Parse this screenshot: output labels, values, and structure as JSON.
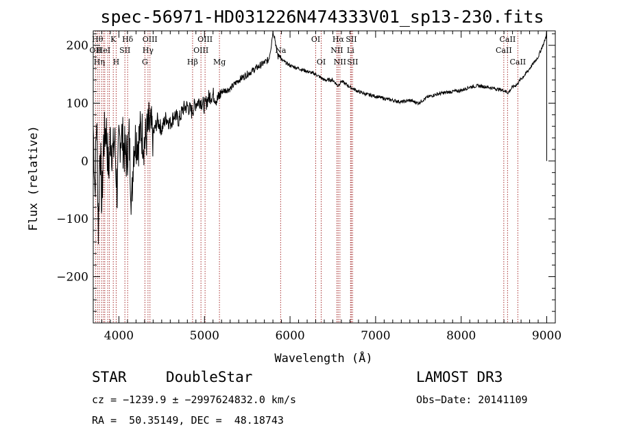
{
  "chart_data": {
    "type": "line",
    "title": "spec-56971-HD031226N474333V01_sp13-230.fits",
    "xlabel": "Wavelength (Å)",
    "ylabel": "Flux (relative)",
    "xlim": [
      3700,
      9100
    ],
    "ylim": [
      -280,
      225
    ],
    "x_ticks": [
      4000,
      5000,
      6000,
      7000,
      8000,
      9000
    ],
    "y_ticks": [
      -200,
      -100,
      0,
      100,
      200
    ],
    "grid": false,
    "series": [
      {
        "name": "spectrum",
        "x": [
          3700,
          3720,
          3740,
          3760,
          3780,
          3800,
          3820,
          3850,
          3880,
          3900,
          3930,
          3950,
          3980,
          4000,
          4030,
          4060,
          4090,
          4120,
          4150,
          4170,
          4200,
          4230,
          4260,
          4300,
          4350,
          4400,
          4450,
          4500,
          4550,
          4600,
          4650,
          4700,
          4750,
          4800,
          4850,
          4900,
          4950,
          5000,
          5050,
          5100,
          5150,
          5200,
          5300,
          5400,
          5500,
          5600,
          5650,
          5700,
          5750,
          5780,
          5800,
          5820,
          5840,
          5860,
          5880,
          5900,
          5950,
          6000,
          6100,
          6200,
          6300,
          6400,
          6500,
          6560,
          6600,
          6700,
          6800,
          6900,
          7000,
          7100,
          7200,
          7300,
          7400,
          7500,
          7600,
          7700,
          7800,
          7900,
          8000,
          8100,
          8200,
          8300,
          8400,
          8500,
          8550,
          8600,
          8650,
          8700,
          8750,
          8800,
          8850,
          8900,
          8940,
          8970,
          8990,
          9000
        ],
        "values": [
          60,
          -50,
          80,
          -120,
          40,
          -80,
          30,
          60,
          -20,
          45,
          10,
          40,
          -60,
          30,
          50,
          20,
          5,
          40,
          -80,
          25,
          40,
          35,
          55,
          30,
          60,
          45,
          70,
          55,
          75,
          65,
          80,
          70,
          90,
          95,
          85,
          100,
          105,
          95,
          110,
          115,
          105,
          120,
          125,
          140,
          150,
          160,
          165,
          170,
          175,
          200,
          225,
          215,
          195,
          180,
          185,
          175,
          170,
          165,
          160,
          155,
          150,
          140,
          140,
          130,
          138,
          128,
          120,
          115,
          112,
          108,
          105,
          102,
          105,
          100,
          110,
          115,
          118,
          120,
          122,
          128,
          130,
          128,
          125,
          122,
          118,
          128,
          132,
          142,
          150,
          160,
          170,
          180,
          195,
          205,
          215,
          225
        ]
      }
    ],
    "spectral_lines": [
      {
        "wavelength": 3727,
        "label": "OII",
        "row": 2
      },
      {
        "wavelength": 3750,
        "label": "Hθ",
        "row": 1
      },
      {
        "wavelength": 3771,
        "label": "Hη",
        "row": 3
      },
      {
        "wavelength": 3798,
        "label": "",
        "row": 0
      },
      {
        "wavelength": 3820,
        "label": "HeI",
        "row": 2
      },
      {
        "wavelength": 3835,
        "label": "",
        "row": 0
      },
      {
        "wavelength": 3869,
        "label": "",
        "row": 0
      },
      {
        "wavelength": 3889,
        "label": "",
        "row": 0
      },
      {
        "wavelength": 3934,
        "label": "K",
        "row": 1
      },
      {
        "wavelength": 3968,
        "label": "H",
        "row": 3
      },
      {
        "wavelength": 4070,
        "label": "SII",
        "row": 2
      },
      {
        "wavelength": 4102,
        "label": "Hδ",
        "row": 1
      },
      {
        "wavelength": 4304,
        "label": "G",
        "row": 3
      },
      {
        "wavelength": 4340,
        "label": "Hγ",
        "row": 2
      },
      {
        "wavelength": 4363,
        "label": "OIII",
        "row": 1
      },
      {
        "wavelength": 4861,
        "label": "Hβ",
        "row": 3
      },
      {
        "wavelength": 4959,
        "label": "OIII",
        "row": 2
      },
      {
        "wavelength": 5007,
        "label": "OIII",
        "row": 1
      },
      {
        "wavelength": 5175,
        "label": "Mg",
        "row": 3
      },
      {
        "wavelength": 5890,
        "label": "Na",
        "row": 2
      },
      {
        "wavelength": 6300,
        "label": "OI",
        "row": 1
      },
      {
        "wavelength": 6364,
        "label": "OI",
        "row": 3
      },
      {
        "wavelength": 6548,
        "label": "NII",
        "row": 2
      },
      {
        "wavelength": 6563,
        "label": "Hα",
        "row": 1
      },
      {
        "wavelength": 6583,
        "label": "NII",
        "row": 3
      },
      {
        "wavelength": 6707,
        "label": "Li",
        "row": 2
      },
      {
        "wavelength": 6716,
        "label": "SII",
        "row": 1
      },
      {
        "wavelength": 6731,
        "label": "SII",
        "row": 3
      },
      {
        "wavelength": 8498,
        "label": "CaII",
        "row": 2
      },
      {
        "wavelength": 8542,
        "label": "CaII",
        "row": 1
      },
      {
        "wavelength": 8662,
        "label": "CaII",
        "row": 3
      }
    ]
  },
  "info": {
    "object_class": "STAR",
    "subclass": "DoubleStar",
    "survey": "LAMOST DR3",
    "redshift_line": "cz = −1239.9 ± −2997624832.0 km/s",
    "obs_date_line": "Obs−Date: 20141109",
    "coords_line": "RA =  50.35149, DEC =  48.18743"
  },
  "colors": {
    "spectrum": "#000000",
    "line_marker": "#a52a2a",
    "axis": "#000000",
    "background": "#ffffff"
  }
}
